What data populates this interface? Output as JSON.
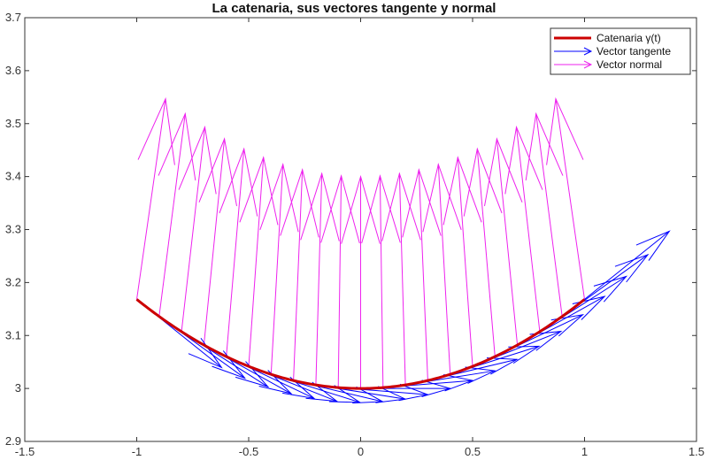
{
  "chart_data": {
    "type": "line",
    "title": "La catenaria, sus vectores tangente y normal",
    "xlabel": "",
    "ylabel": "",
    "xlim": [
      -1.5,
      1.5
    ],
    "ylim": [
      2.9,
      3.7
    ],
    "xticks": [
      "-1.5",
      "-1",
      "-0.5",
      "0",
      "0.5",
      "1",
      "1.5"
    ],
    "yticks": [
      "2.9",
      "3",
      "3.1",
      "3.2",
      "3.3",
      "3.4",
      "3.5",
      "3.6",
      "3.7"
    ],
    "grid": false,
    "legend_position": "top-right",
    "curve": {
      "function": "y = 3*cosh(x/3)",
      "x_range": [
        -1,
        1
      ]
    },
    "vector_sample_x": [
      -1,
      -0.9,
      -0.8,
      -0.7,
      -0.6,
      -0.5,
      -0.4,
      -0.3,
      -0.2,
      -0.1,
      0,
      0.1,
      0.2,
      0.3,
      0.4,
      0.5,
      0.6,
      0.7,
      0.8,
      0.9,
      1
    ],
    "vector_scale": 0.4,
    "series": [
      {
        "name": "Catenaria  γ(t)",
        "color": "#cc0000"
      },
      {
        "name": "Vector tangente",
        "color": "#0000ff"
      },
      {
        "name": "Vector normal",
        "color": "#ee22ee"
      }
    ]
  }
}
